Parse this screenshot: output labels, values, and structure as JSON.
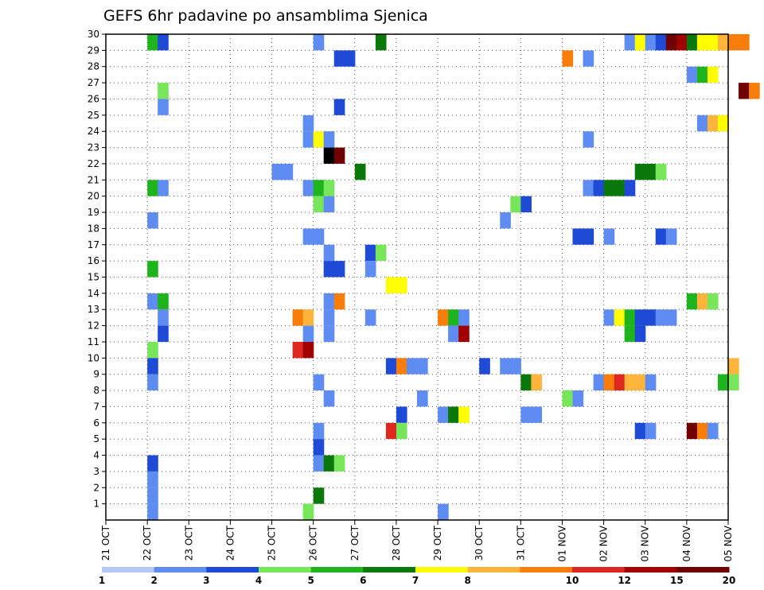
{
  "chart_data": {
    "type": "heatmap",
    "title": "GEFS 6hr padavine po ansamblima Sjenica",
    "xlabel": "",
    "ylabel": "",
    "x_tick_labels": [
      "21 OCT",
      "22 OCT",
      "23 OCT",
      "24 OCT",
      "25 OCT",
      "26 OCT",
      "27 OCT",
      "28 OCT",
      "29 OCT",
      "30 OCT",
      "31 OCT",
      "01 NOV",
      "02 NOV",
      "03 NOV",
      "04 NOV",
      "05 NOV"
    ],
    "y_tick_labels": [
      "1",
      "2",
      "3",
      "4",
      "5",
      "6",
      "7",
      "8",
      "9",
      "10",
      "11",
      "12",
      "13",
      "14",
      "15",
      "16",
      "17",
      "18",
      "19",
      "20",
      "21",
      "22",
      "23",
      "24",
      "25",
      "26",
      "27",
      "28",
      "29",
      "30"
    ],
    "ylim": [
      0,
      30
    ],
    "steps_per_day": 4,
    "grid": true,
    "colorbar": {
      "labels": [
        "1",
        "2",
        "3",
        "4",
        "5",
        "6",
        "7",
        "8",
        "10",
        "12",
        "15",
        "20"
      ],
      "colors": [
        "#b4c8f8",
        "#5f8cf0",
        "#1e4ad6",
        "#78e65a",
        "#1eb41e",
        "#0a780a",
        "#ffff00",
        "#ffb43c",
        "#f87d0a",
        "#dc281e",
        "#a00000",
        "#6e0000"
      ]
    },
    "cells": [
      [
        30,
        1.0,
        4
      ],
      [
        30,
        1.25,
        2
      ],
      [
        30,
        5.0,
        1
      ],
      [
        30,
        6.5,
        5
      ],
      [
        30,
        12.5,
        1
      ],
      [
        30,
        12.75,
        6
      ],
      [
        30,
        13.0,
        1
      ],
      [
        30,
        13.25,
        2
      ],
      [
        30,
        13.5,
        11
      ],
      [
        30,
        13.75,
        10
      ],
      [
        30,
        14.0,
        5
      ],
      [
        30,
        14.25,
        6
      ],
      [
        30,
        14.5,
        6
      ],
      [
        30,
        14.75,
        7
      ],
      [
        30,
        15.0,
        8
      ],
      [
        30,
        15.25,
        8
      ],
      [
        29,
        5.5,
        2
      ],
      [
        29,
        5.75,
        2
      ],
      [
        29,
        11.0,
        8
      ],
      [
        29,
        11.5,
        1
      ],
      [
        28,
        14.0,
        1
      ],
      [
        28,
        14.25,
        4
      ],
      [
        28,
        14.5,
        6
      ],
      [
        27,
        1.25,
        3
      ],
      [
        27,
        15.25,
        11
      ],
      [
        27,
        15.5,
        8
      ],
      [
        26,
        1.25,
        1
      ],
      [
        26,
        5.5,
        2
      ],
      [
        25,
        4.75,
        1
      ],
      [
        25,
        14.25,
        1
      ],
      [
        25,
        14.5,
        7
      ],
      [
        25,
        14.75,
        6
      ],
      [
        24,
        4.75,
        1
      ],
      [
        24,
        5.0,
        6
      ],
      [
        24,
        5.25,
        1
      ],
      [
        24,
        11.5,
        1
      ],
      [
        23,
        5.25,
        12
      ],
      [
        23,
        5.5,
        11
      ],
      [
        22,
        4.0,
        1
      ],
      [
        22,
        4.25,
        1
      ],
      [
        22,
        6.0,
        5
      ],
      [
        22,
        12.75,
        5
      ],
      [
        22,
        13.0,
        5
      ],
      [
        22,
        13.25,
        3
      ],
      [
        21,
        1.0,
        4
      ],
      [
        21,
        1.25,
        1
      ],
      [
        21,
        4.75,
        1
      ],
      [
        21,
        5.0,
        4
      ],
      [
        21,
        5.25,
        3
      ],
      [
        21,
        11.5,
        1
      ],
      [
        21,
        11.75,
        2
      ],
      [
        21,
        12.0,
        5
      ],
      [
        21,
        12.25,
        5
      ],
      [
        21,
        12.5,
        2
      ],
      [
        20,
        5.0,
        3
      ],
      [
        20,
        5.25,
        1
      ],
      [
        20,
        9.75,
        3
      ],
      [
        20,
        10.0,
        2
      ],
      [
        19,
        1.0,
        1
      ],
      [
        19,
        9.5,
        1
      ],
      [
        18,
        4.75,
        1
      ],
      [
        18,
        5.0,
        1
      ],
      [
        18,
        11.25,
        2
      ],
      [
        18,
        11.5,
        2
      ],
      [
        18,
        12.0,
        1
      ],
      [
        18,
        13.25,
        2
      ],
      [
        18,
        13.5,
        1
      ],
      [
        17,
        5.25,
        1
      ],
      [
        17,
        6.25,
        2
      ],
      [
        17,
        6.5,
        3
      ],
      [
        16,
        1.0,
        4
      ],
      [
        16,
        5.25,
        2
      ],
      [
        16,
        5.5,
        2
      ],
      [
        16,
        6.25,
        1
      ],
      [
        15,
        6.75,
        6
      ],
      [
        15,
        7.0,
        6
      ],
      [
        14,
        1.0,
        1
      ],
      [
        14,
        1.25,
        4
      ],
      [
        14,
        5.25,
        1
      ],
      [
        14,
        5.5,
        8
      ],
      [
        14,
        14.0,
        4
      ],
      [
        14,
        14.25,
        7
      ],
      [
        14,
        14.5,
        3
      ],
      [
        13,
        1.25,
        1
      ],
      [
        13,
        4.5,
        8
      ],
      [
        13,
        4.75,
        7
      ],
      [
        13,
        5.25,
        1
      ],
      [
        13,
        6.25,
        1
      ],
      [
        13,
        8.0,
        8
      ],
      [
        13,
        8.25,
        4
      ],
      [
        13,
        8.5,
        1
      ],
      [
        13,
        12.0,
        1
      ],
      [
        13,
        12.25,
        6
      ],
      [
        13,
        12.5,
        4
      ],
      [
        13,
        12.75,
        2
      ],
      [
        13,
        13.0,
        2
      ],
      [
        13,
        13.25,
        1
      ],
      [
        13,
        13.5,
        1
      ],
      [
        12,
        1.25,
        2
      ],
      [
        12,
        4.75,
        1
      ],
      [
        12,
        5.25,
        1
      ],
      [
        12,
        8.25,
        1
      ],
      [
        12,
        8.5,
        10
      ],
      [
        12,
        12.5,
        4
      ],
      [
        12,
        12.75,
        2
      ],
      [
        11,
        1.0,
        3
      ],
      [
        11,
        4.5,
        9
      ],
      [
        11,
        4.75,
        10
      ],
      [
        10,
        1.0,
        2
      ],
      [
        10,
        6.75,
        2
      ],
      [
        10,
        7.0,
        8
      ],
      [
        10,
        7.25,
        1
      ],
      [
        10,
        7.5,
        1
      ],
      [
        10,
        9.0,
        2
      ],
      [
        10,
        9.5,
        1
      ],
      [
        10,
        9.75,
        1
      ],
      [
        10,
        15.0,
        7
      ],
      [
        9,
        1.0,
        1
      ],
      [
        9,
        5.0,
        1
      ],
      [
        9,
        10.0,
        5
      ],
      [
        9,
        10.25,
        7
      ],
      [
        9,
        11.75,
        1
      ],
      [
        9,
        12.0,
        8
      ],
      [
        9,
        12.25,
        9
      ],
      [
        9,
        12.5,
        7
      ],
      [
        9,
        12.75,
        7
      ],
      [
        9,
        13.0,
        1
      ],
      [
        9,
        14.75,
        4
      ],
      [
        9,
        15.0,
        3
      ],
      [
        8,
        5.25,
        1
      ],
      [
        8,
        7.5,
        1
      ],
      [
        8,
        11.0,
        3
      ],
      [
        8,
        11.25,
        1
      ],
      [
        7,
        7.0,
        2
      ],
      [
        7,
        8.0,
        1
      ],
      [
        7,
        8.25,
        5
      ],
      [
        7,
        8.5,
        6
      ],
      [
        7,
        10.0,
        1
      ],
      [
        7,
        10.25,
        1
      ],
      [
        6,
        5.0,
        1
      ],
      [
        6,
        6.75,
        9
      ],
      [
        6,
        7.0,
        3
      ],
      [
        6,
        12.75,
        2
      ],
      [
        6,
        13.0,
        1
      ],
      [
        6,
        14.0,
        11
      ],
      [
        6,
        14.25,
        8
      ],
      [
        6,
        14.5,
        1
      ],
      [
        5,
        5.0,
        2
      ],
      [
        4,
        1.0,
        2
      ],
      [
        4,
        5.0,
        1
      ],
      [
        4,
        5.25,
        5
      ],
      [
        4,
        5.5,
        3
      ],
      [
        3,
        1.0,
        1
      ],
      [
        2,
        1.0,
        1
      ],
      [
        2,
        5.0,
        5
      ],
      [
        1,
        1.0,
        1
      ],
      [
        1,
        4.75,
        3
      ],
      [
        1,
        8.0,
        1
      ]
    ]
  }
}
